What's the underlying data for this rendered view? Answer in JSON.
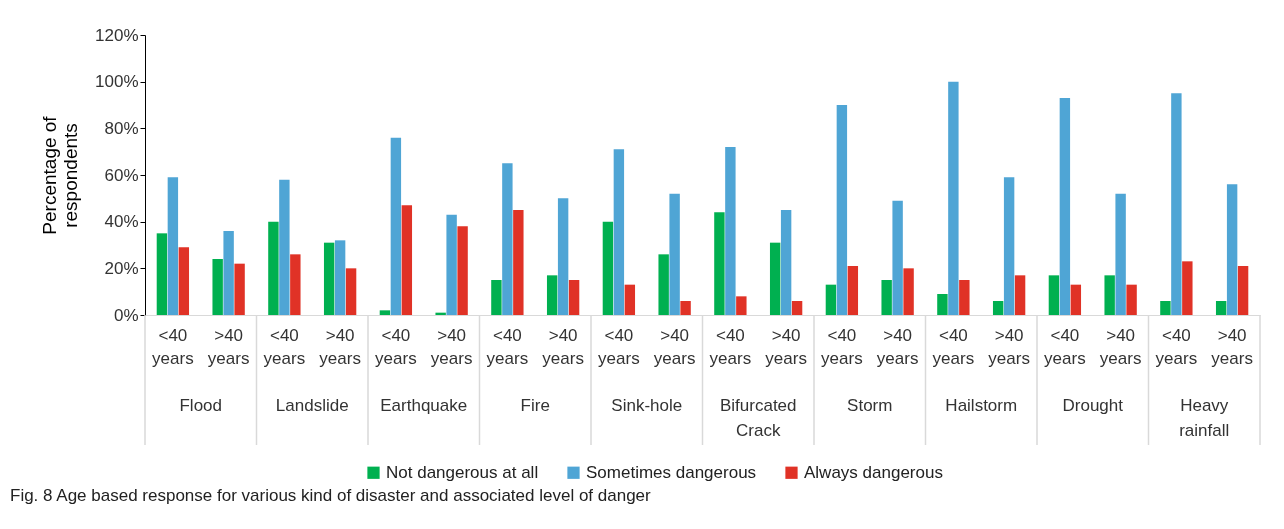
{
  "chart_data": {
    "type": "bar",
    "categories": [
      "<40 years",
      ">40 years",
      "<40 years",
      ">40 years",
      "<40 years",
      ">40 years",
      "<40 years",
      ">40 years",
      "<40 years",
      ">40 years",
      "<40 years",
      ">40 years",
      "<40 years",
      ">40 years",
      "<40 years",
      ">40 years",
      "<40 years",
      ">40 years",
      "<40 years",
      ">40 years"
    ],
    "series": [
      {
        "name": "Not dangerous at all",
        "color": "#00b050",
        "values": [
          35,
          24,
          40,
          31,
          2,
          1,
          15,
          17,
          40,
          26,
          44,
          31,
          13,
          15,
          9,
          6,
          17,
          17,
          6,
          6
        ]
      },
      {
        "name": "Sometimes dangerous",
        "color": "#4fa5d5",
        "values": [
          59,
          36,
          58,
          32,
          76,
          43,
          65,
          50,
          71,
          52,
          72,
          45,
          90,
          49,
          100,
          59,
          93,
          52,
          95,
          56
        ]
      },
      {
        "name": "Always dangerous",
        "color": "#e03226",
        "values": [
          29,
          22,
          26,
          20,
          47,
          38,
          45,
          15,
          13,
          6,
          8,
          6,
          21,
          20,
          15,
          17,
          13,
          13,
          23,
          21
        ]
      }
    ],
    "ylabel": "Percentage of respondents",
    "ylim": [
      0,
      120
    ],
    "yticks": [
      {
        "value": 0,
        "label": "0%"
      },
      {
        "value": 20,
        "label": "20%"
      },
      {
        "value": 40,
        "label": "40%"
      },
      {
        "value": 60,
        "label": "60%"
      },
      {
        "value": 80,
        "label": "80%"
      },
      {
        "value": 100,
        "label": "100%"
      },
      {
        "value": 120,
        "label": "120%"
      }
    ],
    "annotations": [
      "Flood",
      "Landslide",
      "Earthquake",
      "Fire",
      "Sink-hole",
      "Bifurcated Crack",
      "Storm",
      "Hailstorm",
      "Drought",
      "Heavy rainfall",
      "Fig. 8 Age based response for various kind of disaster and associated level of danger"
    ],
    "legend": "bottom",
    "grid": false
  }
}
